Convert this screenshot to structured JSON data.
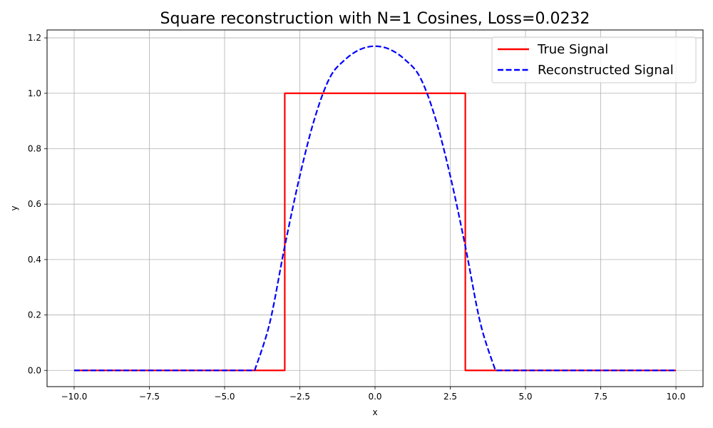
{
  "chart_data": {
    "type": "line",
    "title": "Square reconstruction with N=1 Cosines, Loss=0.0232",
    "xlabel": "x",
    "ylabel": "y",
    "xlim": [
      -10.9,
      10.9
    ],
    "ylim": [
      -0.0585,
      1.2285
    ],
    "xticks": [
      -10.0,
      -7.5,
      -5.0,
      -2.5,
      0.0,
      2.5,
      5.0,
      7.5,
      10.0
    ],
    "xtick_labels": [
      "−10.0",
      "−7.5",
      "−5.0",
      "−2.5",
      "0.0",
      "2.5",
      "5.0",
      "7.5",
      "10.0"
    ],
    "yticks": [
      0.0,
      0.2,
      0.4,
      0.6,
      0.8,
      1.0,
      1.2
    ],
    "ytick_labels": [
      "0.0",
      "0.2",
      "0.4",
      "0.6",
      "0.8",
      "1.0",
      "1.2"
    ],
    "grid": true,
    "legend_position": "top-right",
    "series": [
      {
        "name": "True Signal",
        "color": "#ff0000",
        "style": "solid",
        "x": [
          -10,
          -3,
          -3,
          3,
          3,
          10
        ],
        "y": [
          0,
          0,
          1,
          1,
          0,
          0
        ]
      },
      {
        "name": "Reconstructed Signal",
        "color": "#0000ff",
        "style": "dashed",
        "x": [
          -10,
          -4.0,
          -3.5,
          -3.0,
          -2.5,
          -2.0,
          -1.5,
          -1.0,
          -0.5,
          0.0,
          0.5,
          1.0,
          1.5,
          2.0,
          2.5,
          3.0,
          3.5,
          4.0,
          10
        ],
        "y": [
          0,
          0,
          0.171,
          0.448,
          0.702,
          0.912,
          1.057,
          1.121,
          1.158,
          1.17,
          1.158,
          1.121,
          1.057,
          0.912,
          0.702,
          0.448,
          0.171,
          0,
          0
        ]
      }
    ]
  }
}
